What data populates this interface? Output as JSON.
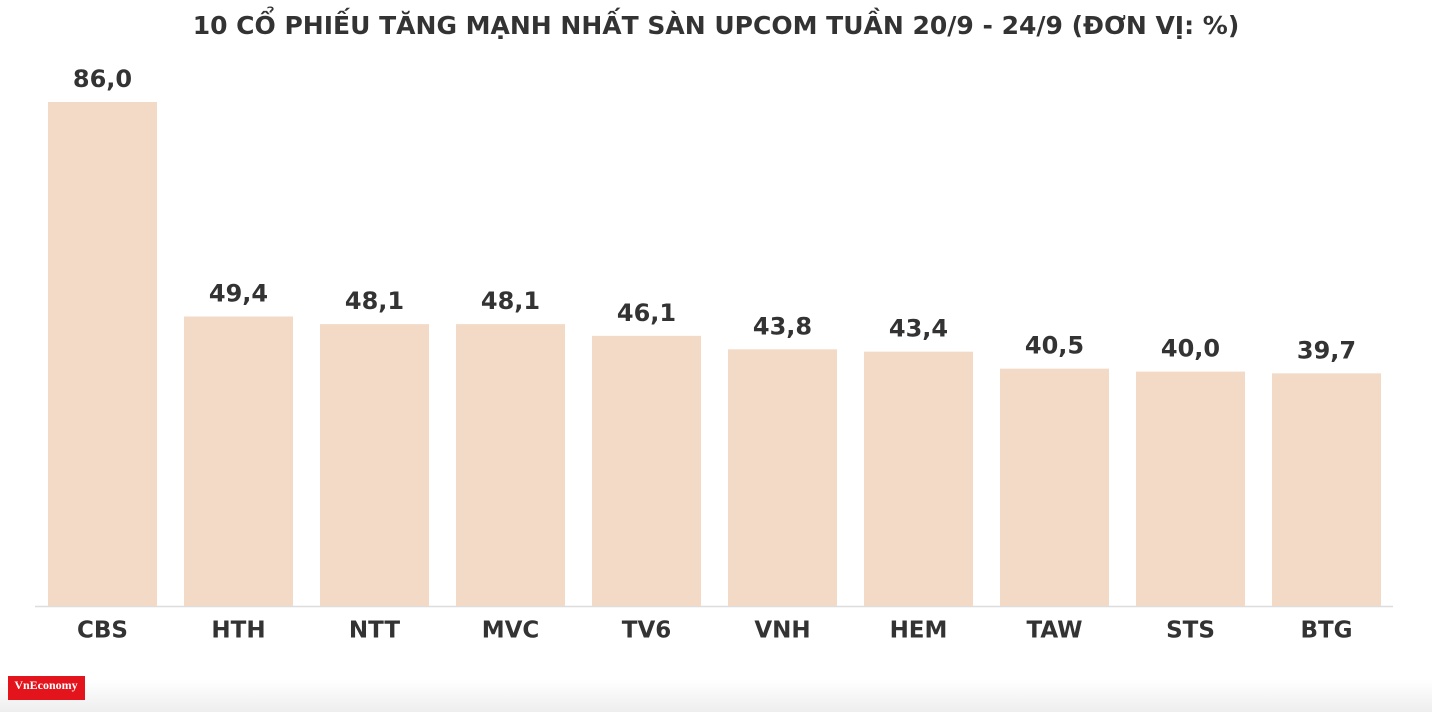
{
  "chart_data": {
    "type": "bar",
    "title": "10 CỔ PHIẾU TĂNG MẠNH NHẤT SÀN UPCOM TUẦN 20/9 - 24/9 (ĐƠN VỊ: %)",
    "categories": [
      "CBS",
      "HTH",
      "NTT",
      "MVC",
      "TV6",
      "VNH",
      "HEM",
      "TAW",
      "STS",
      "BTG"
    ],
    "values": [
      86.0,
      49.4,
      48.1,
      48.1,
      46.1,
      43.8,
      43.4,
      40.5,
      40.0,
      39.7
    ],
    "value_labels": [
      "86,0",
      "49,4",
      "48,1",
      "48,1",
      "46,1",
      "43,8",
      "43,4",
      "40,5",
      "40,0",
      "39,7"
    ],
    "color": "#f3dac6"
  },
  "logo": "VnEconomy"
}
